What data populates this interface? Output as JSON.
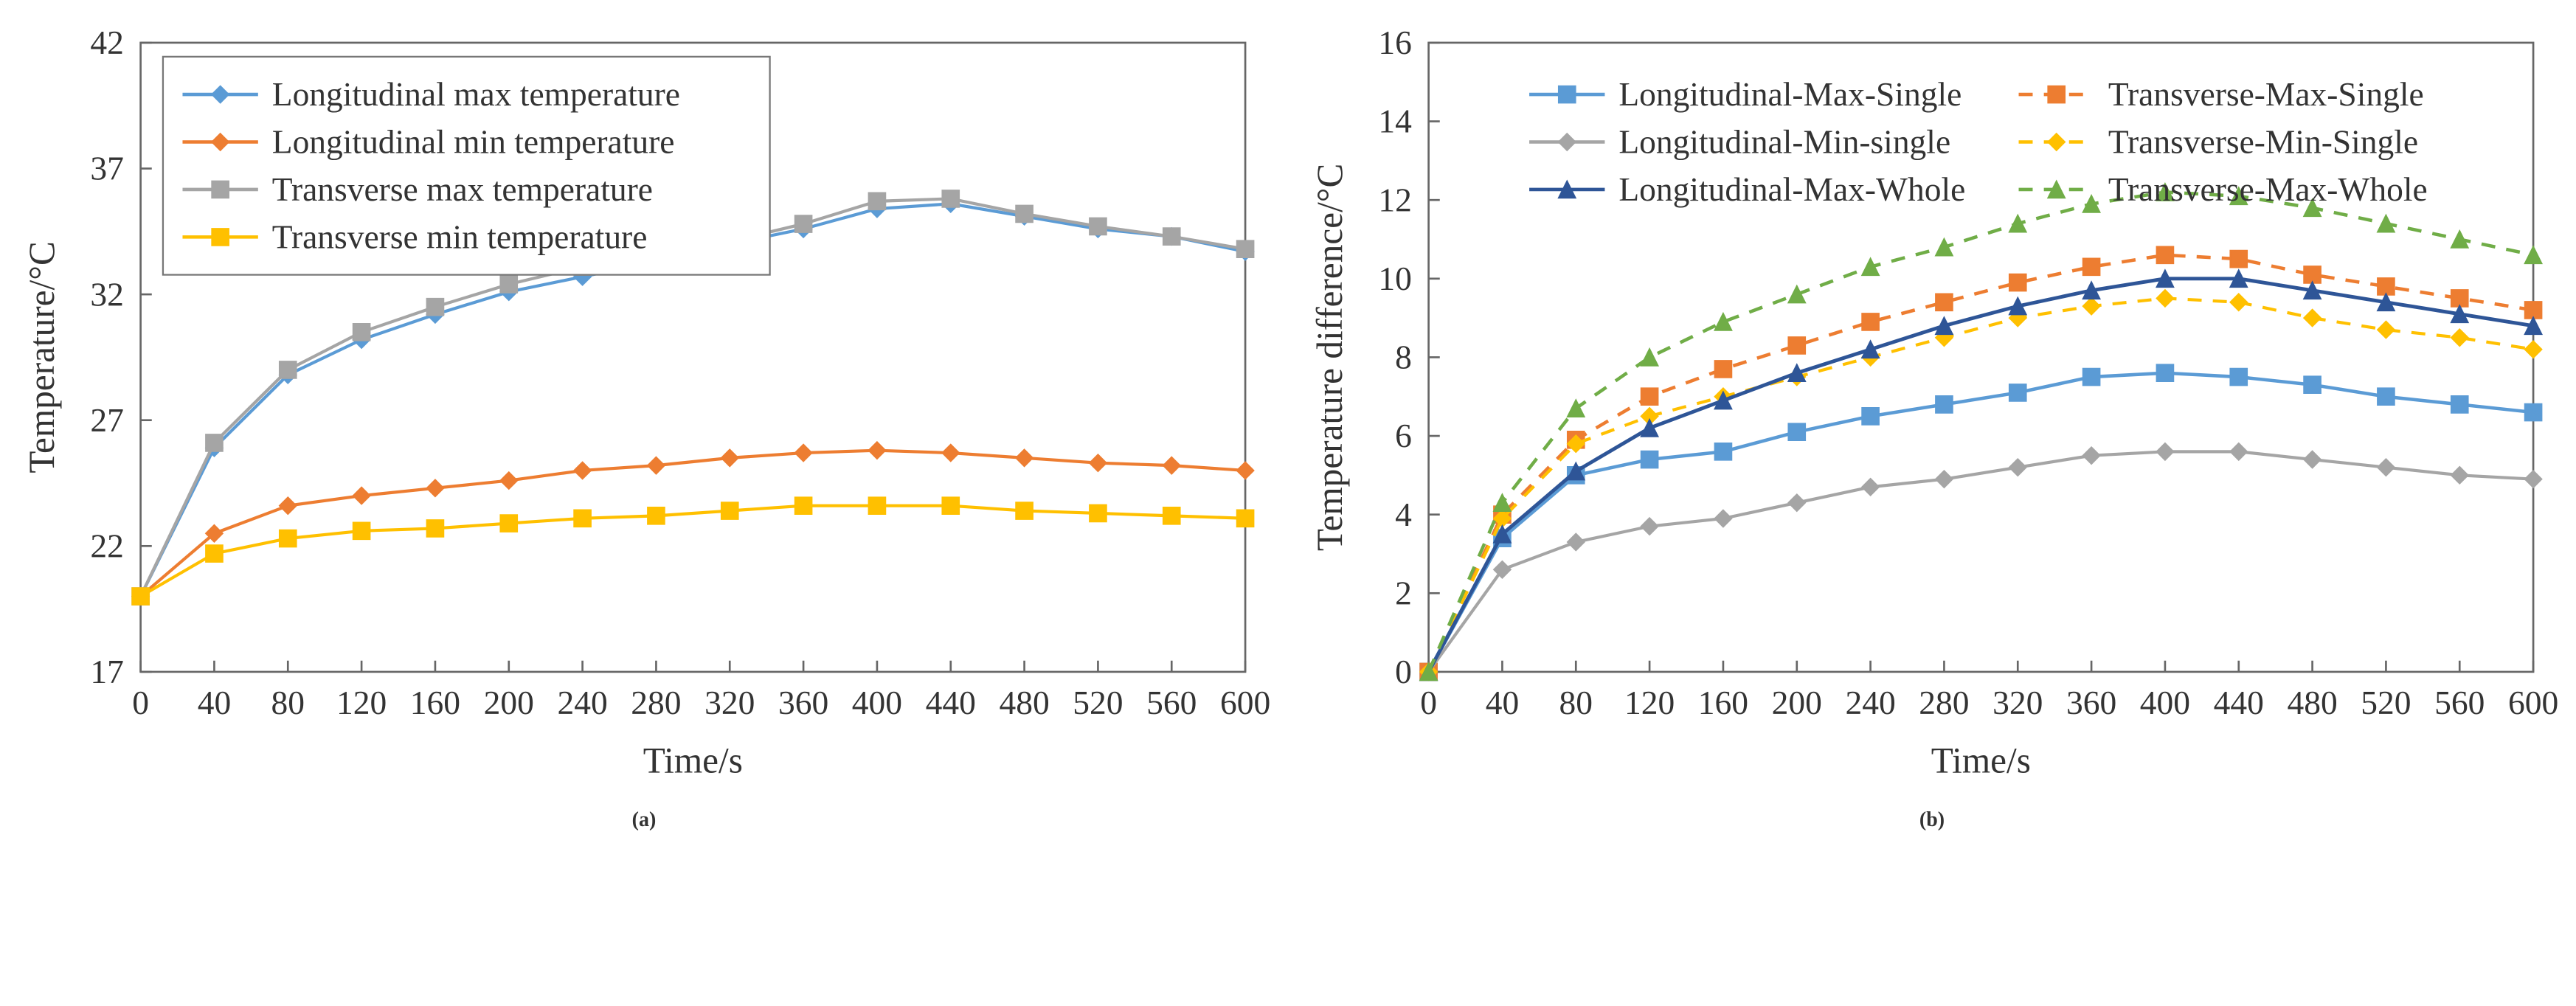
{
  "common": {
    "background_color": "#ffffff",
    "axis_color": "#666666",
    "grid_color": "#d9d9d9",
    "font_family": "Times New Roman",
    "axis_label_fontsize": 26,
    "tick_label_fontsize": 24,
    "legend_fontsize": 24,
    "x_major": [
      0,
      40,
      80,
      120,
      160,
      200,
      240,
      280,
      320,
      360,
      400,
      440,
      480,
      520,
      560,
      600
    ]
  },
  "chartA": {
    "type": "line",
    "caption": "(a)",
    "xlabel": "Time/s",
    "ylabel": "Temperature/°C",
    "xlim": [
      0,
      600
    ],
    "ylim": [
      17,
      42
    ],
    "ytick_step": 5,
    "legend": {
      "position": "upper-left",
      "cols": 1,
      "items": [
        {
          "label": "Longitudinal max temperature",
          "color": "#5b9bd5",
          "marker": "diamond",
          "dash": "solid"
        },
        {
          "label": "Longitudinal min temperature",
          "color": "#ed7d31",
          "marker": "diamond",
          "dash": "solid"
        },
        {
          "label": "Transverse max temperature",
          "color": "#a5a5a5",
          "marker": "square",
          "dash": "solid"
        },
        {
          "label": "Transverse min temperature",
          "color": "#ffc000",
          "marker": "square",
          "dash": "solid"
        }
      ]
    },
    "series": [
      {
        "name": "Longitudinal max temperature",
        "color": "#5b9bd5",
        "marker": "diamond",
        "dash": "solid",
        "line_width": 2.2,
        "x": [
          0,
          40,
          80,
          120,
          160,
          200,
          240,
          280,
          320,
          360,
          400,
          440,
          480,
          520,
          560,
          600
        ],
        "y": [
          20.0,
          25.9,
          28.8,
          30.2,
          31.2,
          32.1,
          32.7,
          33.3,
          34.0,
          34.6,
          35.4,
          35.6,
          35.1,
          34.6,
          34.3,
          33.7
        ]
      },
      {
        "name": "Longitudinal min temperature",
        "color": "#ed7d31",
        "marker": "diamond",
        "dash": "solid",
        "line_width": 2.2,
        "x": [
          0,
          40,
          80,
          120,
          160,
          200,
          240,
          280,
          320,
          360,
          400,
          440,
          480,
          520,
          560,
          600
        ],
        "y": [
          20.0,
          22.5,
          23.6,
          24.0,
          24.3,
          24.6,
          25.0,
          25.2,
          25.5,
          25.7,
          25.8,
          25.7,
          25.5,
          25.3,
          25.2,
          25.0
        ]
      },
      {
        "name": "Transverse max temperature",
        "color": "#a5a5a5",
        "marker": "square",
        "dash": "solid",
        "line_width": 2.2,
        "x": [
          0,
          40,
          80,
          120,
          160,
          200,
          240,
          280,
          320,
          360,
          400,
          440,
          480,
          520,
          560,
          600
        ],
        "y": [
          20.0,
          26.1,
          29.0,
          30.5,
          31.5,
          32.4,
          33.1,
          33.5,
          34.1,
          34.8,
          35.7,
          35.8,
          35.2,
          34.7,
          34.3,
          33.8
        ]
      },
      {
        "name": "Transverse min temperature",
        "color": "#ffc000",
        "marker": "square",
        "dash": "solid",
        "line_width": 2.2,
        "x": [
          0,
          40,
          80,
          120,
          160,
          200,
          240,
          280,
          320,
          360,
          400,
          440,
          480,
          520,
          560,
          600
        ],
        "y": [
          20.0,
          21.7,
          22.3,
          22.6,
          22.7,
          22.9,
          23.1,
          23.2,
          23.4,
          23.6,
          23.6,
          23.6,
          23.4,
          23.3,
          23.2,
          23.1
        ]
      }
    ]
  },
  "chartB": {
    "type": "line",
    "caption": "(b)",
    "xlabel": "Time/s",
    "ylabel": "Temperature difference/°C",
    "xlim": [
      0,
      600
    ],
    "ylim": [
      0,
      16
    ],
    "ytick_step": 2,
    "legend": {
      "position": "upper-center",
      "cols": 2,
      "items": [
        {
          "label": "Longitudinal-Max-Single",
          "color": "#5b9bd5",
          "marker": "square",
          "dash": "solid"
        },
        {
          "label": "Transverse-Max-Single",
          "color": "#ed7d31",
          "marker": "square",
          "dash": "dash"
        },
        {
          "label": "Longitudinal-Min-single",
          "color": "#a5a5a5",
          "marker": "diamond",
          "dash": "solid"
        },
        {
          "label": "Transverse-Min-Single",
          "color": "#ffc000",
          "marker": "diamond",
          "dash": "dash"
        },
        {
          "label": "Longitudinal-Max-Whole",
          "color": "#2e5597",
          "marker": "triangle",
          "dash": "solid"
        },
        {
          "label": "Transverse-Max-Whole",
          "color": "#70ad47",
          "marker": "triangle",
          "dash": "dash"
        }
      ]
    },
    "series": [
      {
        "name": "Longitudinal-Max-Single",
        "color": "#5b9bd5",
        "marker": "square",
        "dash": "solid",
        "line_width": 2.4,
        "x": [
          0,
          40,
          80,
          120,
          160,
          200,
          240,
          280,
          320,
          360,
          400,
          440,
          480,
          520,
          560,
          600
        ],
        "y": [
          0.0,
          3.4,
          5.0,
          5.4,
          5.6,
          6.1,
          6.5,
          6.8,
          7.1,
          7.5,
          7.6,
          7.5,
          7.3,
          7.0,
          6.8,
          6.6
        ]
      },
      {
        "name": "Transverse-Max-Single",
        "color": "#ed7d31",
        "marker": "square",
        "dash": "dash",
        "line_width": 2.4,
        "x": [
          0,
          40,
          80,
          120,
          160,
          200,
          240,
          280,
          320,
          360,
          400,
          440,
          480,
          520,
          560,
          600
        ],
        "y": [
          0.0,
          4.0,
          5.9,
          7.0,
          7.7,
          8.3,
          8.9,
          9.4,
          9.9,
          10.3,
          10.6,
          10.5,
          10.1,
          9.8,
          9.5,
          9.2
        ]
      },
      {
        "name": "Longitudinal-Min-single",
        "color": "#a5a5a5",
        "marker": "diamond",
        "dash": "solid",
        "line_width": 2.2,
        "x": [
          0,
          40,
          80,
          120,
          160,
          200,
          240,
          280,
          320,
          360,
          400,
          440,
          480,
          520,
          560,
          600
        ],
        "y": [
          0.0,
          2.6,
          3.3,
          3.7,
          3.9,
          4.3,
          4.7,
          4.9,
          5.2,
          5.5,
          5.6,
          5.6,
          5.4,
          5.2,
          5.0,
          4.9
        ]
      },
      {
        "name": "Transverse-Min-Single",
        "color": "#ffc000",
        "marker": "diamond",
        "dash": "dash",
        "line_width": 2.2,
        "x": [
          0,
          40,
          80,
          120,
          160,
          200,
          240,
          280,
          320,
          360,
          400,
          440,
          480,
          520,
          560,
          600
        ],
        "y": [
          0.0,
          3.9,
          5.8,
          6.5,
          7.0,
          7.5,
          8.0,
          8.5,
          9.0,
          9.3,
          9.5,
          9.4,
          9.0,
          8.7,
          8.5,
          8.2
        ]
      },
      {
        "name": "Longitudinal-Max-Whole",
        "color": "#2e5597",
        "marker": "triangle",
        "dash": "solid",
        "line_width": 2.6,
        "x": [
          0,
          40,
          80,
          120,
          160,
          200,
          240,
          280,
          320,
          360,
          400,
          440,
          480,
          520,
          560,
          600
        ],
        "y": [
          0.0,
          3.5,
          5.1,
          6.2,
          6.9,
          7.6,
          8.2,
          8.8,
          9.3,
          9.7,
          10.0,
          10.0,
          9.7,
          9.4,
          9.1,
          8.8
        ]
      },
      {
        "name": "Transverse-Max-Whole",
        "color": "#70ad47",
        "marker": "triangle",
        "dash": "dash",
        "line_width": 2.4,
        "x": [
          0,
          40,
          80,
          120,
          160,
          200,
          240,
          280,
          320,
          360,
          400,
          440,
          480,
          520,
          560,
          600
        ],
        "y": [
          0.0,
          4.3,
          6.7,
          8.0,
          8.9,
          9.6,
          10.3,
          10.8,
          11.4,
          11.9,
          12.2,
          12.1,
          11.8,
          11.4,
          11.0,
          10.6
        ]
      }
    ]
  }
}
